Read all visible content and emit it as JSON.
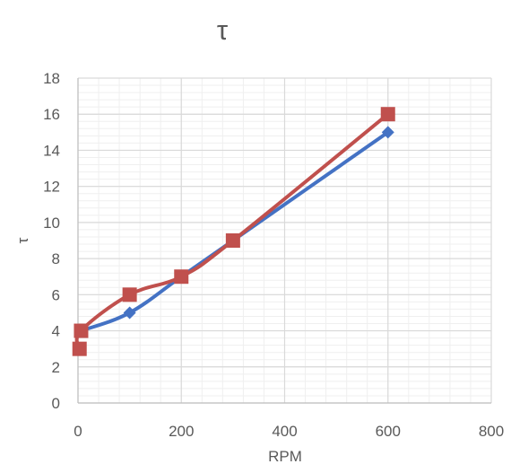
{
  "chart_data": {
    "type": "line",
    "title": "τ",
    "xlabel": "RPM",
    "ylabel": "τ",
    "xlim": [
      0,
      800
    ],
    "ylim": [
      0,
      18
    ],
    "x_ticks": [
      "0",
      "200",
      "400",
      "600",
      "800"
    ],
    "y_ticks": [
      "0",
      "2",
      "4",
      "6",
      "8",
      "10",
      "12",
      "14",
      "16",
      "18"
    ],
    "grid": true,
    "legend": "none",
    "series": [
      {
        "color": "#4472C4",
        "marker": "diamond",
        "points": [
          [
            6,
            4
          ],
          [
            100,
            5
          ],
          [
            200,
            7
          ],
          [
            300,
            9
          ],
          [
            600,
            15
          ]
        ]
      },
      {
        "color": "#C0504D",
        "marker": "square",
        "points": [
          [
            3,
            3
          ],
          [
            6,
            4
          ],
          [
            100,
            6
          ],
          [
            200,
            7
          ],
          [
            300,
            9
          ],
          [
            600,
            16
          ]
        ]
      }
    ]
  }
}
